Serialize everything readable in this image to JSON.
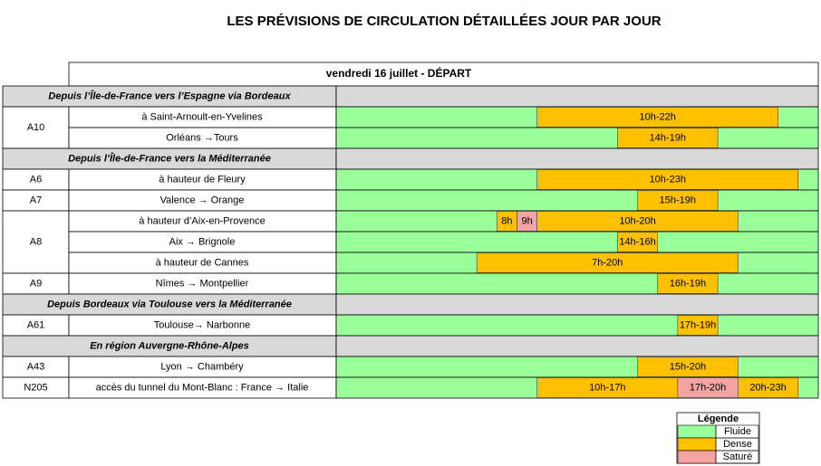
{
  "header": {
    "title": "LES PRÉVISIONS DE CIRCULATION DÉTAILLÉES JOUR PAR JOUR"
  },
  "table": {
    "caption": "vendredi 16 juillet - DÉPART",
    "time_range": [
      0,
      24
    ],
    "sections": [
      {
        "title": "Depuis l’Île-de-France vers l’Espagne via Bordeaux",
        "roads": [
          {
            "road": "A10",
            "rows": [
              {
                "location": "à Saint-Arnoult-en-Yvelines",
                "segments": [
                  {
                    "start": 10,
                    "end": 22,
                    "label": "10h-22h",
                    "color": "#ffc000"
                  }
                ]
              },
              {
                "location": "Orléans →Tours",
                "segments": [
                  {
                    "start": 14,
                    "end": 19,
                    "label": "14h-19h",
                    "color": "#ffc000"
                  }
                ]
              }
            ]
          }
        ]
      },
      {
        "title": "Depuis l’Île-de-France vers la Méditerranée",
        "roads": [
          {
            "road": "A6",
            "rows": [
              {
                "location": "à hauteur de Fleury",
                "segments": [
                  {
                    "start": 10,
                    "end": 23,
                    "label": "10h-23h",
                    "color": "#ffc000"
                  }
                ]
              }
            ]
          },
          {
            "road": "A7",
            "rows": [
              {
                "location": "Valence → Orange",
                "segments": [
                  {
                    "start": 15,
                    "end": 19,
                    "label": "15h-19h",
                    "color": "#ffc000"
                  }
                ]
              }
            ]
          },
          {
            "road": "A8",
            "rows": [
              {
                "location": "à hauteur d’Aix-en-Provence",
                "segments": [
                  {
                    "start": 8,
                    "end": 9,
                    "label": "8h",
                    "color": "#ffc000"
                  },
                  {
                    "start": 9,
                    "end": 10,
                    "label": "9h",
                    "color": "#f4a3a3"
                  },
                  {
                    "start": 10,
                    "end": 20,
                    "label": "10h-20h",
                    "color": "#ffc000"
                  }
                ]
              },
              {
                "location": "Aix → Brignole",
                "segments": [
                  {
                    "start": 14,
                    "end": 16,
                    "label": "14h-16h",
                    "color": "#ffc000"
                  }
                ]
              },
              {
                "location": "à hauteur de Cannes",
                "segments": [
                  {
                    "start": 7,
                    "end": 20,
                    "label": "7h-20h",
                    "color": "#ffc000"
                  }
                ]
              }
            ]
          },
          {
            "road": "A9",
            "rows": [
              {
                "location": "Nîmes → Montpellier",
                "segments": [
                  {
                    "start": 16,
                    "end": 19,
                    "label": "16h-19h",
                    "color": "#ffc000"
                  }
                ]
              }
            ]
          }
        ]
      },
      {
        "title": "Depuis Bordeaux via Toulouse vers la Méditerranée",
        "roads": [
          {
            "road": "A61",
            "rows": [
              {
                "location": "Toulouse→ Narbonne",
                "segments": [
                  {
                    "start": 17,
                    "end": 19,
                    "label": "17h-19h",
                    "color": "#ffc000"
                  }
                ]
              }
            ]
          }
        ]
      },
      {
        "title": "En région Auvergne-Rhône-Alpes",
        "roads": [
          {
            "road": "A43",
            "rows": [
              {
                "location": "Lyon → Chambéry",
                "segments": [
                  {
                    "start": 15,
                    "end": 20,
                    "label": "15h-20h",
                    "color": "#ffc000"
                  }
                ]
              }
            ]
          },
          {
            "road": "N205",
            "rows": [
              {
                "location": "accès du tunnel du Mont-Blanc : France → Italie",
                "segments": [
                  {
                    "start": 10,
                    "end": 17,
                    "label": "10h-17h",
                    "color": "#ffc000"
                  },
                  {
                    "start": 17,
                    "end": 20,
                    "label": "17h-20h",
                    "color": "#f4a3a3"
                  },
                  {
                    "start": 20,
                    "end": 23,
                    "label": "20h-23h",
                    "color": "#ffc000"
                  }
                ]
              }
            ]
          }
        ]
      }
    ]
  },
  "legend": {
    "title": "Légende",
    "items": [
      {
        "label": "Fluide",
        "color": "#99ff99"
      },
      {
        "label": "Dense",
        "color": "#ffc000"
      },
      {
        "label": "Saturé",
        "color": "#f4a3a3"
      }
    ]
  }
}
